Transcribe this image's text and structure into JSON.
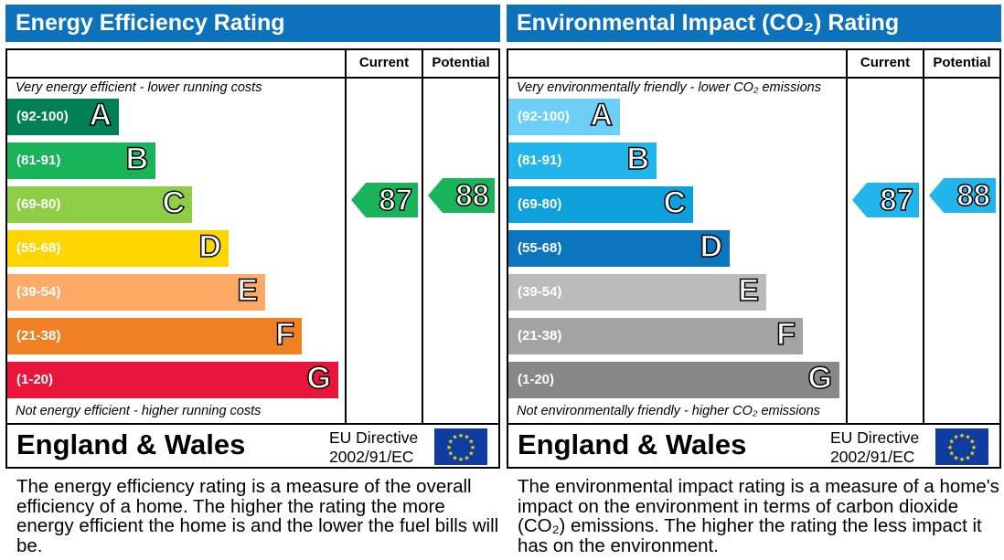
{
  "chart_data": [
    {
      "type": "bar",
      "title": "Energy Efficiency Rating",
      "columns": [
        "Current",
        "Potential"
      ],
      "top_note": "Very energy efficient - lower running costs",
      "bottom_note": "Not energy efficient - higher running costs",
      "bands": [
        {
          "range": "(92-100)",
          "letter": "A",
          "color": "#008054"
        },
        {
          "range": "(81-91)",
          "letter": "B",
          "color": "#19b459"
        },
        {
          "range": "(69-80)",
          "letter": "C",
          "color": "#8dce46"
        },
        {
          "range": "(55-68)",
          "letter": "D",
          "color": "#ffd500"
        },
        {
          "range": "(39-54)",
          "letter": "E",
          "color": "#fcaa65"
        },
        {
          "range": "(21-38)",
          "letter": "F",
          "color": "#ef8023"
        },
        {
          "range": "(1-20)",
          "letter": "G",
          "color": "#e9153b"
        }
      ],
      "current": 87,
      "potential": 88,
      "current_color": "#19b459",
      "potential_color": "#19b459",
      "region": "England & Wales",
      "directive_1": "EU Directive",
      "directive_2": "2002/91/EC",
      "description": "The energy efficiency rating is a measure of the overall efficiency of a home. The higher the rating the more energy efficient the home is and the lower the fuel bills will be."
    },
    {
      "type": "bar",
      "title": "Environmental Impact (CO₂) Rating",
      "columns": [
        "Current",
        "Potential"
      ],
      "top_note": "Very environmentally friendly - lower CO₂ emissions",
      "bottom_note": "Not environmentally friendly - higher CO₂ emissions",
      "bands": [
        {
          "range": "(92-100)",
          "letter": "A",
          "color": "#6ecff6"
        },
        {
          "range": "(81-91)",
          "letter": "B",
          "color": "#22b5ec"
        },
        {
          "range": "(69-80)",
          "letter": "C",
          "color": "#0ea0db"
        },
        {
          "range": "(55-68)",
          "letter": "D",
          "color": "#0b75bd"
        },
        {
          "range": "(39-54)",
          "letter": "E",
          "color": "#bbbbbb"
        },
        {
          "range": "(21-38)",
          "letter": "F",
          "color": "#a3a3a3"
        },
        {
          "range": "(1-20)",
          "letter": "G",
          "color": "#888888"
        }
      ],
      "current": 87,
      "potential": 88,
      "current_color": "#22b5ec",
      "potential_color": "#22b5ec",
      "region": "England & Wales",
      "directive_1": "EU Directive",
      "directive_2": "2002/91/EC",
      "description": "The environmental impact rating is a measure of a home's impact on the environment in terms of carbon dioxide (CO₂) emissions. The higher the rating the less impact it has on the environment."
    }
  ]
}
